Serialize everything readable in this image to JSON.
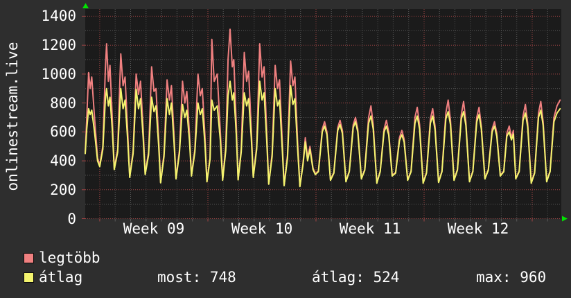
{
  "window": {
    "background": "#2e2e2e",
    "plot_background": "#1b1b1b",
    "text_color": "#ffffff",
    "arrow_color": "#00e400"
  },
  "y_axis_label": "onlinestream.live",
  "legend": [
    {
      "label": "legtöbb",
      "color": "#f08080"
    },
    {
      "label": "átlag",
      "color": "#f4f46e"
    }
  ],
  "stats": [
    {
      "text": "most: 748"
    },
    {
      "text": "átlag: 524"
    },
    {
      "text": "max: 960"
    }
  ],
  "icons": {
    "up_arrow": "up-arrow-icon",
    "right_arrow": "right-arrow-icon"
  },
  "chart_data": {
    "type": "line",
    "title": "onlinestream.live",
    "xlabel": "",
    "ylabel": "",
    "x_unit": "days from left edge of plot",
    "ylim": [
      0,
      1450
    ],
    "y_major_ticks": [
      0,
      200,
      400,
      600,
      800,
      1000,
      1200,
      1400
    ],
    "y_minor_ticks": [
      100,
      300,
      500,
      700,
      900,
      1100,
      1300
    ],
    "grid": {
      "major_color": "#a24444",
      "minor_color": "#5a5a5a",
      "style": "dotted",
      "grid_on": true
    },
    "week_boundaries_t": [
      0.94,
      7.94,
      14.94,
      21.94,
      28.94
    ],
    "day_gridlines": {
      "start_t": 0.94,
      "step": 1,
      "count": 30
    },
    "x_labels": [
      {
        "label": "Week 09",
        "t_center": 4.44
      },
      {
        "label": "Week 10",
        "t_center": 11.44
      },
      {
        "label": "Week 11",
        "t_center": 18.44
      },
      {
        "label": "Week 12",
        "t_center": 25.44
      }
    ],
    "legend_position": "bottom-left",
    "t": [
      0,
      0.1,
      0.22,
      0.32,
      0.42,
      0.6,
      0.8,
      0.94,
      1.14,
      1.3,
      1.38,
      1.5,
      1.6,
      1.75,
      1.88,
      2.1,
      2.3,
      2.45,
      2.58,
      2.75,
      2.88,
      3.1,
      3.3,
      3.45,
      3.58,
      3.75,
      3.88,
      4.1,
      4.3,
      4.45,
      4.58,
      4.75,
      4.88,
      5.1,
      5.3,
      5.45,
      5.58,
      5.75,
      5.88,
      6.1,
      6.3,
      6.45,
      6.58,
      6.75,
      6.88,
      7.1,
      7.3,
      7.45,
      7.58,
      7.75,
      7.88,
      8.08,
      8.2,
      8.35,
      8.55,
      8.75,
      8.9,
      9.1,
      9.25,
      9.38,
      9.52,
      9.62,
      9.78,
      9.9,
      10.1,
      10.3,
      10.45,
      10.58,
      10.75,
      10.88,
      11.1,
      11.3,
      11.45,
      11.58,
      11.75,
      11.88,
      12.1,
      12.3,
      12.45,
      12.58,
      12.75,
      12.88,
      13.1,
      13.3,
      13.45,
      13.58,
      13.75,
      13.9,
      14.1,
      14.25,
      14.4,
      14.55,
      14.75,
      14.9,
      15.1,
      15.35,
      15.5,
      15.65,
      15.88,
      16.1,
      16.35,
      16.5,
      16.65,
      16.88,
      17.1,
      17.35,
      17.5,
      17.65,
      17.88,
      18.1,
      18.35,
      18.5,
      18.65,
      18.88,
      19.1,
      19.35,
      19.5,
      19.65,
      19.88,
      20.1,
      20.35,
      20.5,
      20.65,
      20.88,
      21.1,
      21.35,
      21.5,
      21.65,
      21.88,
      22.1,
      22.35,
      22.5,
      22.65,
      22.88,
      23.1,
      23.35,
      23.5,
      23.65,
      23.88,
      24.1,
      24.35,
      24.5,
      24.65,
      24.88,
      25.1,
      25.35,
      25.5,
      25.65,
      25.88,
      26.1,
      26.35,
      26.5,
      26.65,
      26.88,
      27.1,
      27.3,
      27.45,
      27.6,
      27.72,
      27.88,
      28.1,
      28.35,
      28.5,
      28.65,
      28.88,
      29.1,
      29.35,
      29.5,
      29.65,
      29.88,
      30.1,
      30.35,
      30.55,
      30.75
    ],
    "series": [
      {
        "name": "legtöbb",
        "color": "#f08080",
        "values": [
          455,
          700,
          1010,
          900,
          980,
          700,
          420,
          370,
          500,
          1030,
          1210,
          950,
          1060,
          700,
          345,
          480,
          1140,
          920,
          980,
          600,
          290,
          470,
          1000,
          860,
          950,
          620,
          310,
          460,
          1050,
          880,
          900,
          560,
          250,
          450,
          960,
          820,
          920,
          580,
          280,
          470,
          950,
          800,
          880,
          590,
          300,
          480,
          1000,
          850,
          900,
          580,
          260,
          420,
          1240,
          950,
          1000,
          600,
          270,
          500,
          1100,
          1310,
          1050,
          1100,
          650,
          270,
          480,
          1150,
          950,
          1020,
          620,
          290,
          500,
          1210,
          980,
          1050,
          600,
          240,
          450,
          1060,
          900,
          960,
          560,
          230,
          440,
          1090,
          920,
          980,
          540,
          225,
          380,
          560,
          420,
          500,
          350,
          310,
          330,
          620,
          670,
          600,
          270,
          320,
          630,
          680,
          610,
          260,
          330,
          650,
          700,
          620,
          280,
          340,
          700,
          780,
          650,
          250,
          330,
          620,
          680,
          600,
          300,
          320,
          560,
          610,
          550,
          270,
          330,
          700,
          770,
          650,
          250,
          320,
          690,
          760,
          640,
          255,
          330,
          730,
          820,
          680,
          270,
          340,
          720,
          810,
          670,
          260,
          330,
          700,
          770,
          640,
          280,
          340,
          620,
          670,
          590,
          300,
          330,
          590,
          640,
          560,
          610,
          280,
          330,
          710,
          790,
          660,
          250,
          320,
          730,
          810,
          670,
          260,
          330,
          700,
          780,
          820
        ]
      },
      {
        "name": "átlag",
        "color": "#f4f46e",
        "values": [
          450,
          620,
          760,
          720,
          750,
          600,
          400,
          360,
          480,
          820,
          900,
          780,
          840,
          620,
          340,
          460,
          900,
          760,
          820,
          540,
          285,
          450,
          895,
          760,
          830,
          560,
          305,
          440,
          840,
          740,
          780,
          510,
          248,
          430,
          830,
          720,
          800,
          530,
          275,
          450,
          790,
          700,
          750,
          540,
          295,
          460,
          800,
          720,
          760,
          520,
          255,
          410,
          820,
          750,
          780,
          540,
          265,
          470,
          850,
          950,
          820,
          870,
          580,
          268,
          460,
          870,
          780,
          830,
          560,
          285,
          480,
          950,
          820,
          870,
          540,
          238,
          430,
          900,
          780,
          820,
          500,
          228,
          420,
          920,
          790,
          830,
          490,
          222,
          370,
          530,
          400,
          480,
          340,
          305,
          325,
          600,
          640,
          580,
          265,
          315,
          610,
          650,
          590,
          255,
          325,
          630,
          670,
          600,
          275,
          335,
          660,
          710,
          620,
          245,
          325,
          600,
          640,
          580,
          295,
          315,
          540,
          580,
          530,
          265,
          325,
          660,
          710,
          620,
          245,
          315,
          660,
          710,
          615,
          250,
          325,
          690,
          740,
          650,
          265,
          335,
          690,
          740,
          645,
          255,
          325,
          670,
          720,
          620,
          275,
          335,
          600,
          640,
          570,
          295,
          325,
          570,
          600,
          545,
          585,
          275,
          325,
          680,
          730,
          635,
          245,
          315,
          700,
          750,
          645,
          255,
          325,
          670,
          730,
          760
        ]
      }
    ]
  }
}
